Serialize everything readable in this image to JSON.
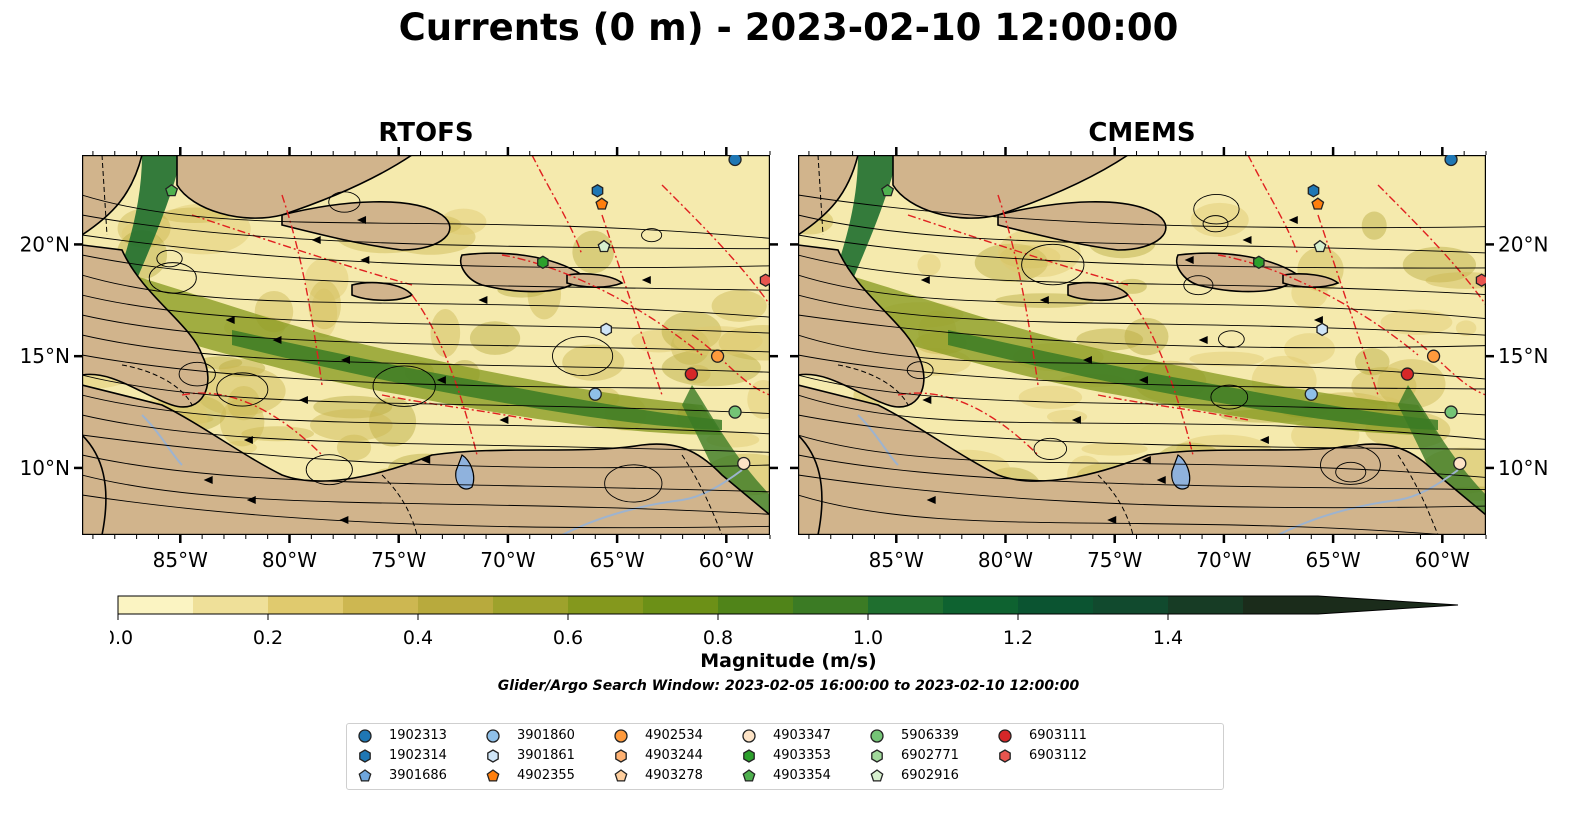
{
  "title": "Currents (0 m) - 2023-02-10 12:00:00",
  "panels": [
    {
      "title": "RTOFS"
    },
    {
      "title": "CMEMS"
    }
  ],
  "colorbar": {
    "label": "Magnitude (m/s)",
    "ticks": [
      "0.0",
      "0.2",
      "0.4",
      "0.6",
      "0.8",
      "1.0",
      "1.2",
      "1.4"
    ],
    "colors": [
      "#fbf4c2",
      "#efe099",
      "#e0ca6e",
      "#cdb751",
      "#b8aa3d",
      "#9ea22c",
      "#84981d",
      "#6c9017",
      "#508419",
      "#3b7b24",
      "#1f6f2f",
      "#0e6230",
      "#0b5431",
      "#114a2e",
      "#173c25",
      "#1b2c1b"
    ],
    "extend": "max"
  },
  "search_window": "Glider/Argo Search Window: 2023-02-05 16:00:00 to 2023-02-10 12:00:00",
  "legend": [
    {
      "label": "1902313",
      "marker": "circle",
      "color": "#1f77b4"
    },
    {
      "label": "1902314",
      "marker": "hexagon",
      "color": "#1f77b4"
    },
    {
      "label": "3901686",
      "marker": "pentagon",
      "color": "#6fa6dd"
    },
    {
      "label": "3901860",
      "marker": "circle",
      "color": "#8fc0e9"
    },
    {
      "label": "3901861",
      "marker": "hexagon",
      "color": "#cfe5f7"
    },
    {
      "label": "4902355",
      "marker": "pentagon",
      "color": "#ff7f0e"
    },
    {
      "label": "4902534",
      "marker": "circle",
      "color": "#ff9a3c"
    },
    {
      "label": "4903244",
      "marker": "hexagon",
      "color": "#ffb273"
    },
    {
      "label": "4903278",
      "marker": "pentagon",
      "color": "#ffcf9e"
    },
    {
      "label": "4903347",
      "marker": "circle",
      "color": "#fde3c6"
    },
    {
      "label": "4903353",
      "marker": "hexagon",
      "color": "#2ca02c"
    },
    {
      "label": "4903354",
      "marker": "pentagon",
      "color": "#4fb04f"
    },
    {
      "label": "5906339",
      "marker": "circle",
      "color": "#74c476"
    },
    {
      "label": "6902771",
      "marker": "hexagon",
      "color": "#a1d99b"
    },
    {
      "label": "6902916",
      "marker": "pentagon",
      "color": "#d8f0cf"
    },
    {
      "label": "6903111",
      "marker": "circle",
      "color": "#d62728"
    },
    {
      "label": "6903112",
      "marker": "hexagon",
      "color": "#e8554f"
    }
  ],
  "chart_data": [
    {
      "type": "map",
      "title": "RTOFS",
      "x_ticks": [
        "85°W",
        "80°W",
        "75°W",
        "70°W",
        "65°W",
        "60°W"
      ],
      "y_ticks": [
        "20°N",
        "15°N",
        "10°N"
      ],
      "lon_range": [
        -89.5,
        -58.0
      ],
      "lat_range": [
        7.0,
        24.0
      ],
      "tick_lons": [
        -85,
        -80,
        -75,
        -70,
        -65,
        -60
      ],
      "tick_lats": [
        20,
        15,
        10
      ],
      "floats": [
        {
          "id": "1902313",
          "lon": -59.6,
          "lat": 23.8
        },
        {
          "id": "1902314",
          "lon": -65.9,
          "lat": 22.4
        },
        {
          "id": "4902355",
          "lon": -65.7,
          "lat": 21.8
        },
        {
          "id": "6902916",
          "lon": -65.6,
          "lat": 19.9
        },
        {
          "id": "4903353",
          "lon": -68.4,
          "lat": 19.2
        },
        {
          "id": "6903112",
          "lon": -58.2,
          "lat": 18.4
        },
        {
          "id": "3901861",
          "lon": -65.5,
          "lat": 16.2
        },
        {
          "id": "4902534",
          "lon": -60.4,
          "lat": 15.0
        },
        {
          "id": "6903111",
          "lon": -61.6,
          "lat": 14.2
        },
        {
          "id": "3901860",
          "lon": -66.0,
          "lat": 13.3
        },
        {
          "id": "5906339",
          "lon": -59.6,
          "lat": 12.5
        },
        {
          "id": "4903347",
          "lon": -59.2,
          "lat": 10.2
        },
        {
          "id": "4903354",
          "lon": -85.4,
          "lat": 22.4
        }
      ]
    },
    {
      "type": "map",
      "title": "CMEMS",
      "x_ticks": [
        "85°W",
        "80°W",
        "75°W",
        "70°W",
        "65°W",
        "60°W"
      ],
      "y_ticks": [
        "20°N",
        "15°N",
        "10°N"
      ],
      "lon_range": [
        -89.5,
        -58.0
      ],
      "lat_range": [
        7.0,
        24.0
      ],
      "tick_lons": [
        -85,
        -80,
        -75,
        -70,
        -65,
        -60
      ],
      "tick_lats": [
        20,
        15,
        10
      ],
      "floats": [
        {
          "id": "1902313",
          "lon": -59.6,
          "lat": 23.8
        },
        {
          "id": "1902314",
          "lon": -65.9,
          "lat": 22.4
        },
        {
          "id": "4902355",
          "lon": -65.7,
          "lat": 21.8
        },
        {
          "id": "6902916",
          "lon": -65.6,
          "lat": 19.9
        },
        {
          "id": "4903353",
          "lon": -68.4,
          "lat": 19.2
        },
        {
          "id": "6903112",
          "lon": -58.2,
          "lat": 18.4
        },
        {
          "id": "3901861",
          "lon": -65.5,
          "lat": 16.2
        },
        {
          "id": "4902534",
          "lon": -60.4,
          "lat": 15.0
        },
        {
          "id": "6903111",
          "lon": -61.6,
          "lat": 14.2
        },
        {
          "id": "3901860",
          "lon": -66.0,
          "lat": 13.3
        },
        {
          "id": "5906339",
          "lon": -59.6,
          "lat": 12.5
        },
        {
          "id": "4903347",
          "lon": -59.2,
          "lat": 10.2
        },
        {
          "id": "4903354",
          "lon": -85.4,
          "lat": 22.4
        }
      ]
    }
  ]
}
